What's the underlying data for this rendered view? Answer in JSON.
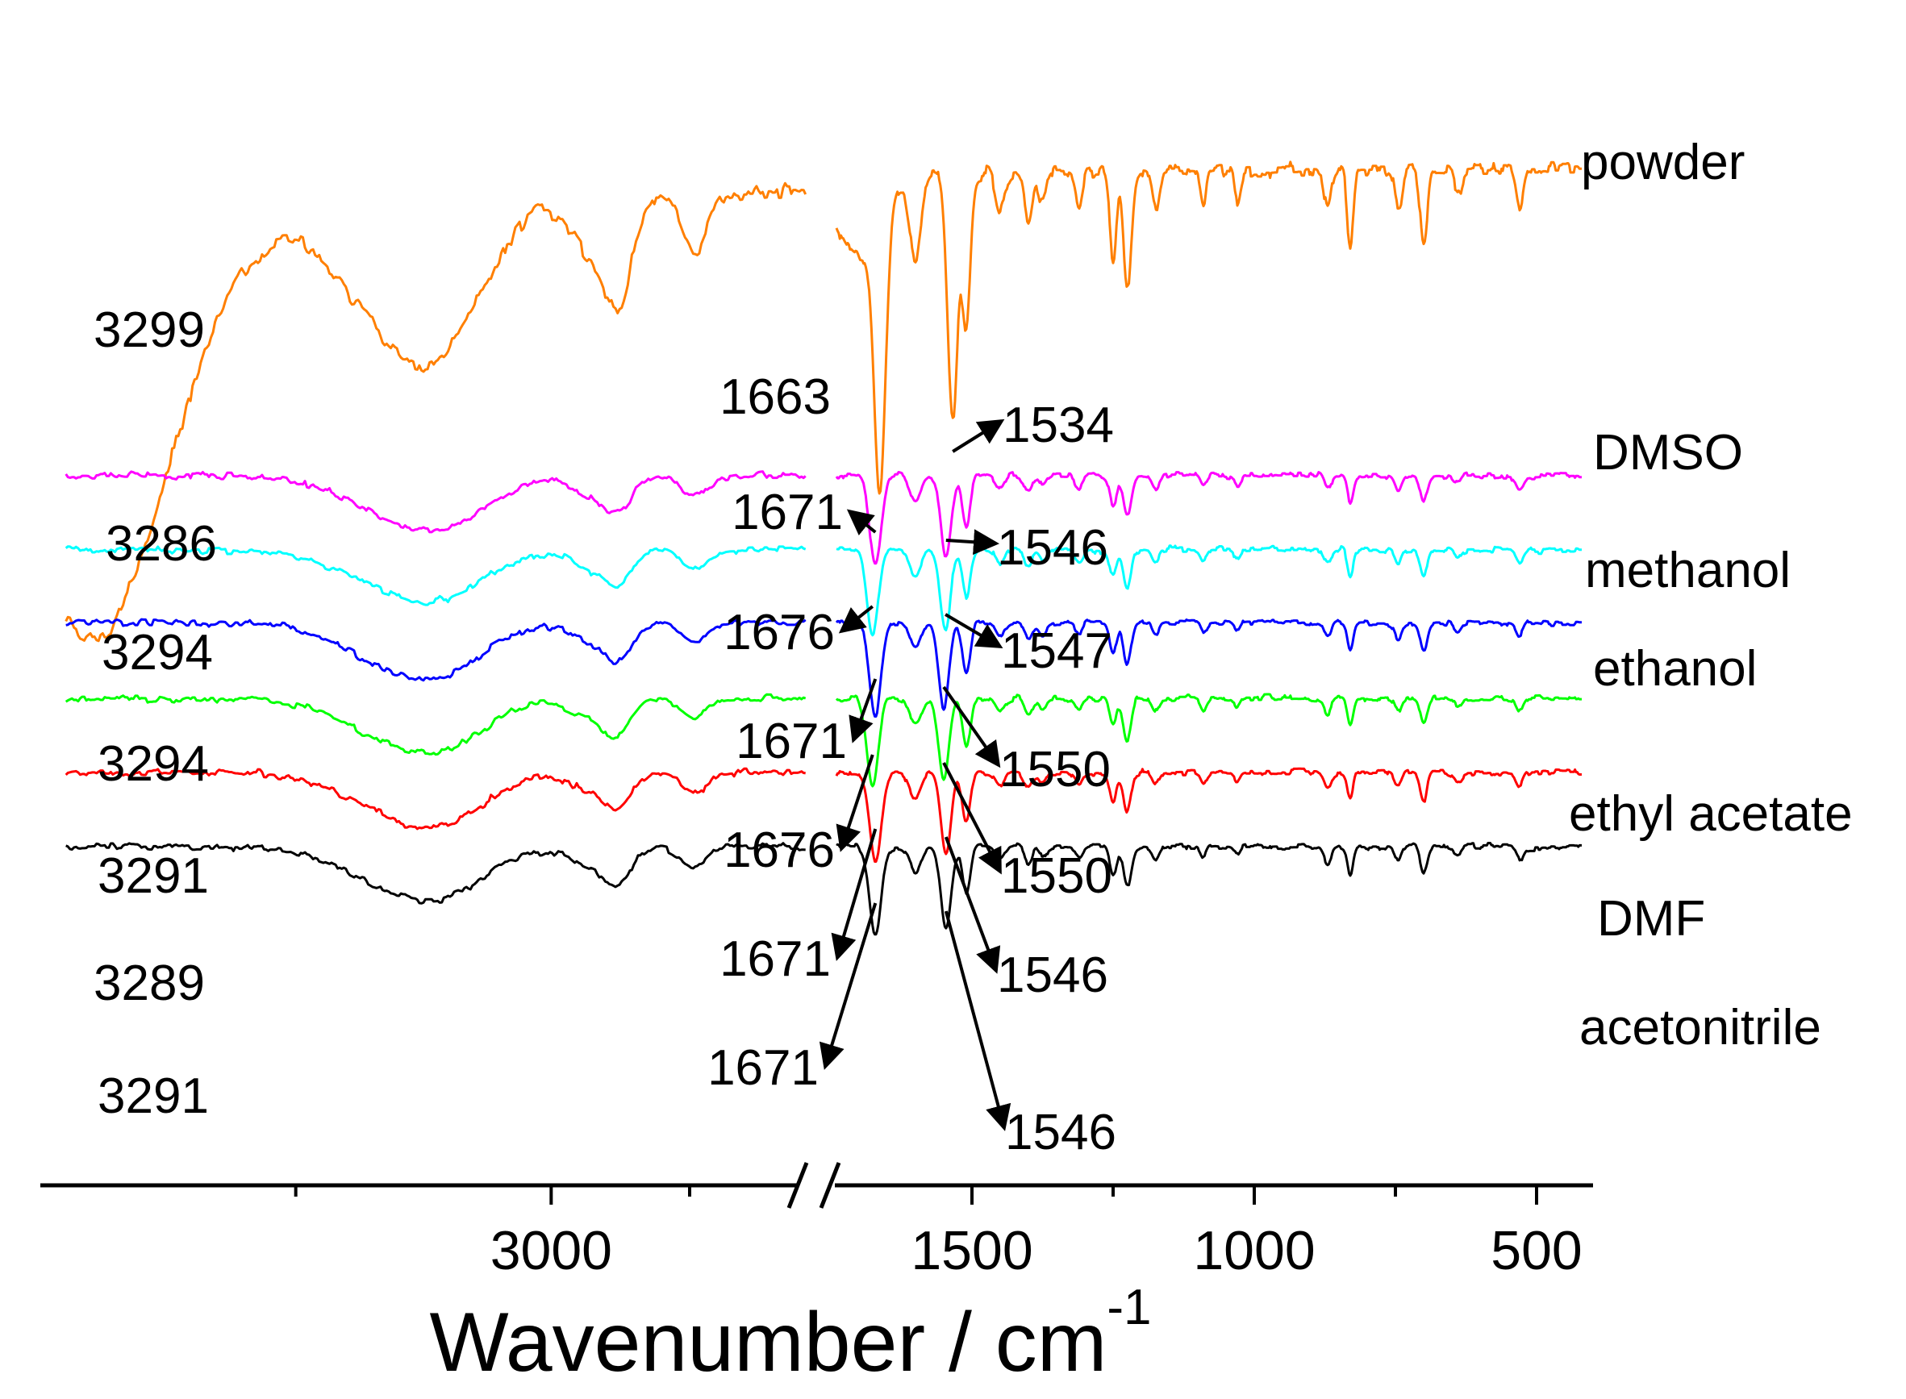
{
  "chart_data": {
    "type": "line",
    "title": "",
    "xlabel": "Wavenumber / cm",
    "xlabel_superscript": "-1",
    "ylabel": "",
    "x_direction": "descending",
    "axis_break": "between 2500 and 1750",
    "xlim_left_segment": [
      4000,
      2500
    ],
    "xlim_right_segment": [
      1750,
      400
    ],
    "x_ticks": [
      {
        "value": 3000,
        "label": "3000"
      },
      {
        "value": 1500,
        "label": "1500"
      },
      {
        "value": 1000,
        "label": "1000"
      },
      {
        "value": 500,
        "label": "500"
      }
    ],
    "x_minor_ticks": [
      3500,
      2000,
      1250,
      750
    ],
    "series": [
      {
        "name": "powder",
        "color": "#ff7f00",
        "peaks": [
          {
            "value": 3299,
            "label": "3299"
          },
          {
            "value": 1663,
            "label": "1663"
          },
          {
            "value": 1534,
            "label": "1534"
          }
        ]
      },
      {
        "name": "DMSO",
        "color": "#ff00ff",
        "peaks": [
          {
            "value": 3286,
            "label": "3286"
          },
          {
            "value": 1671,
            "label": "1671"
          },
          {
            "value": 1546,
            "label": "1546"
          }
        ]
      },
      {
        "name": "methanol",
        "color": "#00ffff",
        "peaks": [
          {
            "value": 3294,
            "label": "3294"
          },
          {
            "value": 1676,
            "label": "1676"
          },
          {
            "value": 1547,
            "label": "1547"
          }
        ]
      },
      {
        "name": "ethanol",
        "color": "#0000ff",
        "peaks": [
          {
            "value": 3294,
            "label": "3294"
          },
          {
            "value": 1671,
            "label": "1671"
          },
          {
            "value": 1550,
            "label": "1550"
          }
        ]
      },
      {
        "name": "ethyl acetate",
        "color": "#00ff00",
        "peaks": [
          {
            "value": 3291,
            "label": "3291"
          },
          {
            "value": 1676,
            "label": "1676"
          },
          {
            "value": 1550,
            "label": "1550"
          }
        ]
      },
      {
        "name": "DMF",
        "color": "#ff0000",
        "peaks": [
          {
            "value": 3289,
            "label": "3289"
          },
          {
            "value": 1671,
            "label": "1671"
          },
          {
            "value": 1546,
            "label": "1546"
          }
        ]
      },
      {
        "name": "acetonitrile",
        "color": "#000000",
        "peaks": [
          {
            "value": 3291,
            "label": "3291"
          },
          {
            "value": 1671,
            "label": "1671"
          },
          {
            "value": 1546,
            "label": "1546"
          }
        ]
      }
    ]
  }
}
